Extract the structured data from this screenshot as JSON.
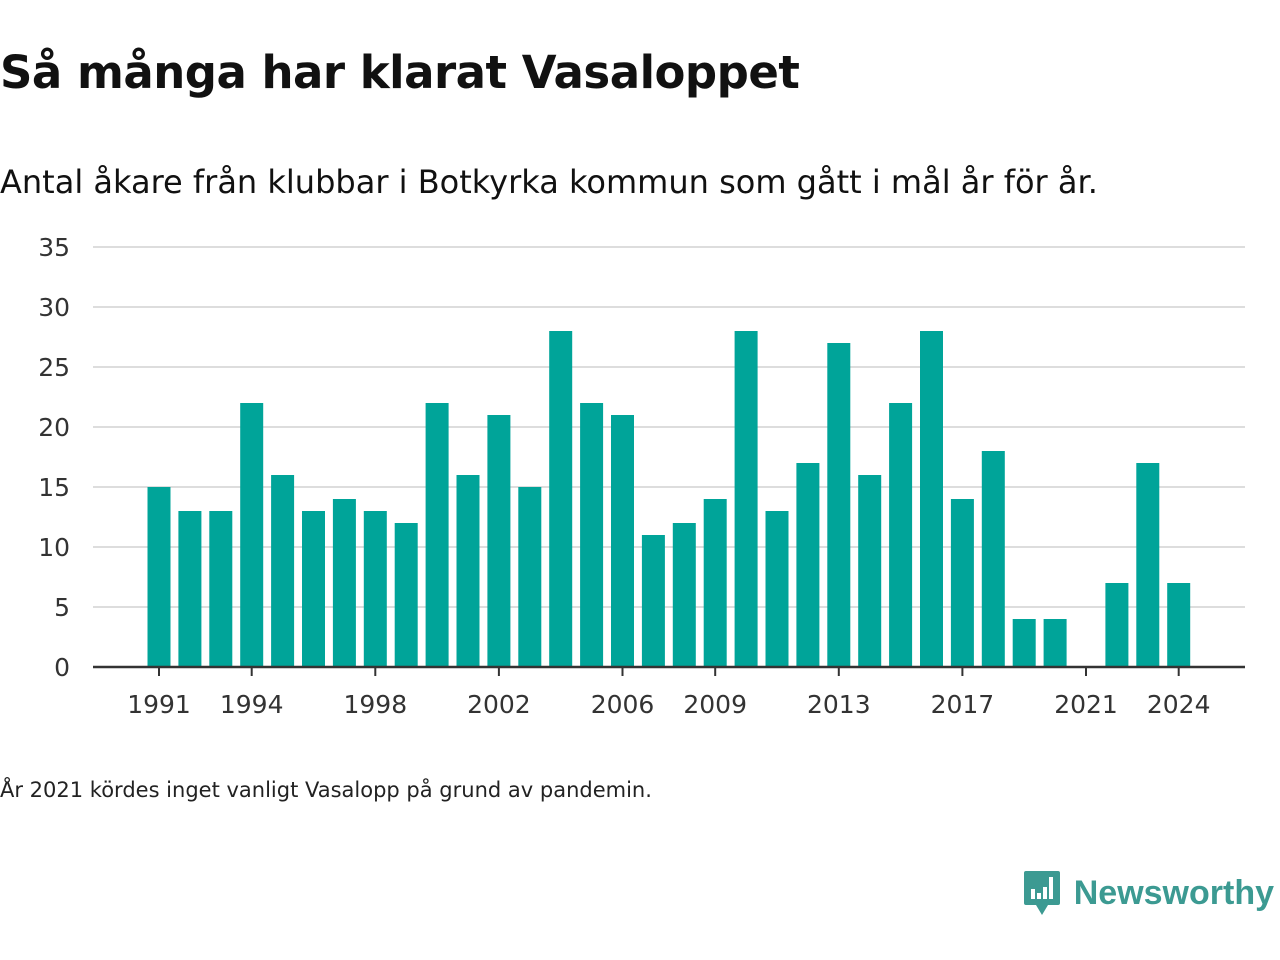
{
  "title": "Så många har klarat Vasaloppet",
  "subtitle": "Antal åkare från klubbar i Botkyrka kommun som gått i mål år för år.",
  "note": "År 2021 kördes inget vanligt Vasalopp på grund av pandemin.",
  "brand": {
    "name": "Newsworthy",
    "logo_icon": "newsworthy-logo-icon",
    "color": "#3c9a92"
  },
  "chart_data": {
    "type": "bar",
    "x": [
      1991,
      1992,
      1993,
      1994,
      1995,
      1996,
      1997,
      1998,
      1999,
      2000,
      2001,
      2002,
      2003,
      2004,
      2005,
      2006,
      2007,
      2008,
      2009,
      2010,
      2011,
      2012,
      2013,
      2014,
      2015,
      2016,
      2017,
      2018,
      2019,
      2020,
      2021,
      2022,
      2023,
      2024
    ],
    "values": [
      15,
      13,
      13,
      22,
      16,
      13,
      14,
      13,
      12,
      22,
      16,
      21,
      15,
      28,
      22,
      21,
      11,
      12,
      14,
      28,
      13,
      17,
      27,
      16,
      22,
      28,
      14,
      18,
      4,
      4,
      0,
      7,
      17,
      7
    ],
    "x_tick_labels": [
      "1991",
      "1994",
      "1998",
      "2002",
      "2006",
      "2009",
      "2013",
      "2017",
      "2021",
      "2024"
    ],
    "y_ticks": [
      "0",
      "5",
      "10",
      "15",
      "20",
      "25",
      "30",
      "35"
    ],
    "ylim": [
      0,
      35
    ],
    "grid": true,
    "bar_color": "#00a499",
    "grid_color": "#dddddd",
    "axis_color": "#333333"
  }
}
